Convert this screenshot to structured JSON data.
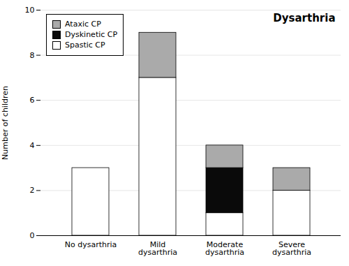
{
  "chart_data": {
    "type": "bar",
    "stacked": true,
    "title": "Dysarthria",
    "categories": [
      "No dysarthria",
      "Mild\ndysarthria",
      "Moderate\ndysarthria",
      "Severe\ndysarthria"
    ],
    "series": [
      {
        "name": "Spastic CP",
        "color": "#ffffff",
        "values": [
          3,
          7,
          1,
          2
        ]
      },
      {
        "name": "Dyskinetic CP",
        "color": "#0a0a0a",
        "values": [
          0,
          0,
          2,
          0
        ]
      },
      {
        "name": "Ataxic CP",
        "color": "#aaaaaa",
        "values": [
          0,
          2,
          1,
          1
        ]
      }
    ],
    "ylabel": "Number of children",
    "ylim": [
      0,
      10
    ],
    "yticks": [
      0,
      2,
      4,
      6,
      8,
      10
    ],
    "grid": true,
    "legend": "upper left"
  }
}
